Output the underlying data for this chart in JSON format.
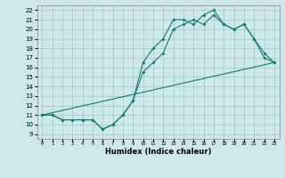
{
  "title": "",
  "xlabel": "Humidex (Indice chaleur)",
  "background_color": "#cce8e8",
  "grid_color": "#aacccc",
  "line_color": "#1a7a6e",
  "xlim": [
    -0.5,
    23.5
  ],
  "ylim": [
    8.5,
    22.5
  ],
  "yticks": [
    9,
    10,
    11,
    12,
    13,
    14,
    15,
    16,
    17,
    18,
    19,
    20,
    21,
    22
  ],
  "xticks": [
    0,
    1,
    2,
    3,
    4,
    5,
    6,
    7,
    8,
    9,
    10,
    11,
    12,
    13,
    14,
    15,
    16,
    17,
    18,
    19,
    20,
    21,
    22,
    23
  ],
  "line1_x": [
    0,
    1,
    2,
    3,
    4,
    5,
    6,
    7,
    8,
    9,
    10,
    11,
    12,
    13,
    14,
    15,
    16,
    17,
    18,
    19,
    20,
    21,
    22,
    23
  ],
  "line1_y": [
    11.0,
    11.0,
    10.5,
    10.5,
    10.5,
    10.5,
    9.5,
    10.0,
    11.0,
    12.5,
    16.5,
    18.0,
    19.0,
    21.0,
    21.0,
    20.5,
    21.5,
    22.0,
    20.5,
    20.0,
    20.5,
    19.0,
    17.5,
    16.5
  ],
  "line2_x": [
    0,
    1,
    2,
    3,
    4,
    5,
    6,
    7,
    8,
    9,
    10,
    11,
    12,
    13,
    14,
    15,
    16,
    17,
    18,
    19,
    20,
    21,
    22,
    23
  ],
  "line2_y": [
    11.0,
    11.0,
    10.5,
    10.5,
    10.5,
    10.5,
    9.5,
    10.0,
    11.0,
    12.5,
    15.5,
    16.5,
    17.5,
    20.0,
    20.5,
    21.0,
    20.5,
    21.5,
    20.5,
    20.0,
    20.5,
    19.0,
    17.0,
    16.5
  ],
  "line3_x": [
    0,
    23
  ],
  "line3_y": [
    11.0,
    16.5
  ],
  "xfontsize": 4.0,
  "yfontsize": 5.0,
  "xlabel_fontsize": 6.0
}
